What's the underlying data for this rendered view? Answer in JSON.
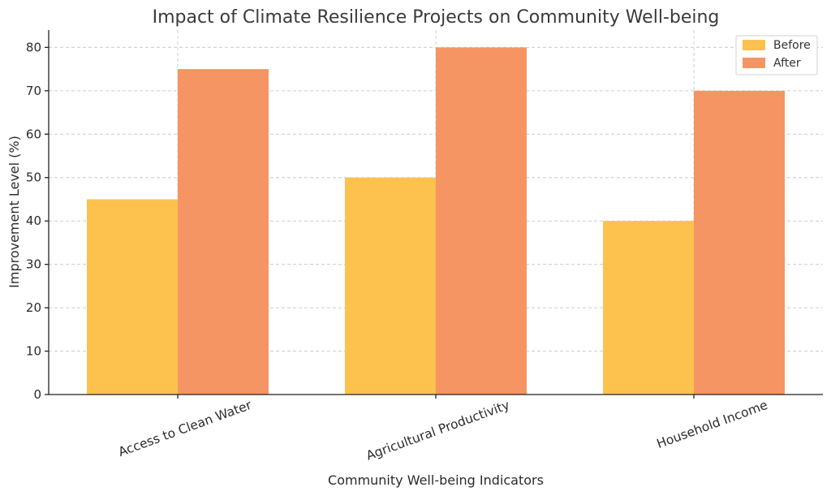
{
  "chart_data": {
    "type": "bar",
    "title": "Impact of Climate Resilience Projects on Community Well-being",
    "xlabel": "Community Well-being Indicators",
    "ylabel": "Improvement Level (%)",
    "categories": [
      "Access to Clean Water",
      "Agricultural Productivity",
      "Household Income"
    ],
    "series": [
      {
        "name": "Before",
        "values": [
          45,
          50,
          40
        ],
        "color": "#fcc24d"
      },
      {
        "name": "After",
        "values": [
          75,
          80,
          70
        ],
        "color": "#f59563"
      }
    ],
    "ylim": [
      0,
      84
    ],
    "yticks": [
      0,
      10,
      20,
      30,
      40,
      50,
      60,
      70,
      80
    ],
    "grid": true,
    "legend_position": "top-right"
  }
}
